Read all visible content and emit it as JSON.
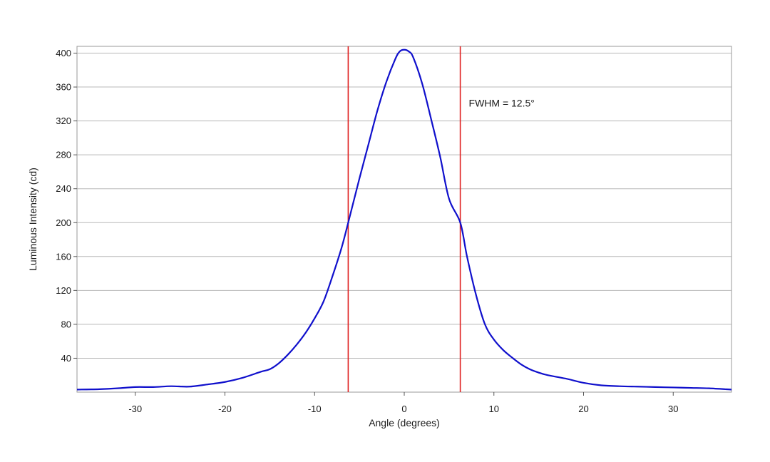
{
  "chart_data": {
    "type": "line",
    "title": "",
    "xlabel": "Angle (degrees)",
    "ylabel": "Luminous Intensity (cd)",
    "xlim": [
      -36.5,
      36.5
    ],
    "ylim": [
      0,
      408
    ],
    "x_ticks": [
      -30,
      -20,
      -10,
      0,
      10,
      20,
      30
    ],
    "x_tick_labels": [
      "-30",
      "-20",
      "-10",
      "0",
      "10",
      "20",
      "30"
    ],
    "y_ticks": [
      40,
      80,
      120,
      160,
      200,
      240,
      280,
      320,
      360,
      400
    ],
    "y_tick_labels": [
      "40",
      "80",
      "120",
      "160",
      "200",
      "240",
      "280",
      "320",
      "360",
      "400"
    ],
    "grid": "horizontal",
    "series": [
      {
        "color": "#1010cc",
        "x": [
          -36.5,
          -34,
          -32,
          -30,
          -28,
          -26,
          -24,
          -22,
          -20,
          -18,
          -16,
          -15,
          -14,
          -13,
          -12,
          -11,
          -10,
          -9,
          -8,
          -7,
          -6.25,
          -5,
          -4,
          -3,
          -2,
          -1,
          -0.5,
          0,
          0.5,
          1,
          2,
          3,
          4,
          5,
          6.25,
          7,
          8,
          9,
          10,
          11,
          12,
          13,
          14,
          15,
          16,
          18,
          20,
          22,
          24,
          26,
          28,
          30,
          32,
          34,
          36.5
        ],
        "y": [
          3,
          3.5,
          4.5,
          6,
          6,
          7,
          6.5,
          9,
          12,
          17,
          24,
          27,
          34,
          44,
          56,
          70,
          87,
          107,
          137,
          170,
          200,
          252,
          292,
          332,
          366,
          393,
          402,
          404,
          402,
          395,
          364,
          322,
          278,
          228,
          200,
          160,
          115,
          80,
          62,
          50,
          41,
          33,
          27,
          23,
          20,
          16,
          11,
          8,
          7,
          6.5,
          6,
          5.5,
          5,
          4.5,
          3
        ]
      }
    ],
    "reference_lines": [
      {
        "axis": "x",
        "value": -6.25,
        "color": "#e02020"
      },
      {
        "axis": "x",
        "value": 6.25,
        "color": "#e02020"
      }
    ],
    "annotations": [
      {
        "text": "FWHM = 12.5°",
        "x": 7.2,
        "y": 337
      }
    ]
  }
}
